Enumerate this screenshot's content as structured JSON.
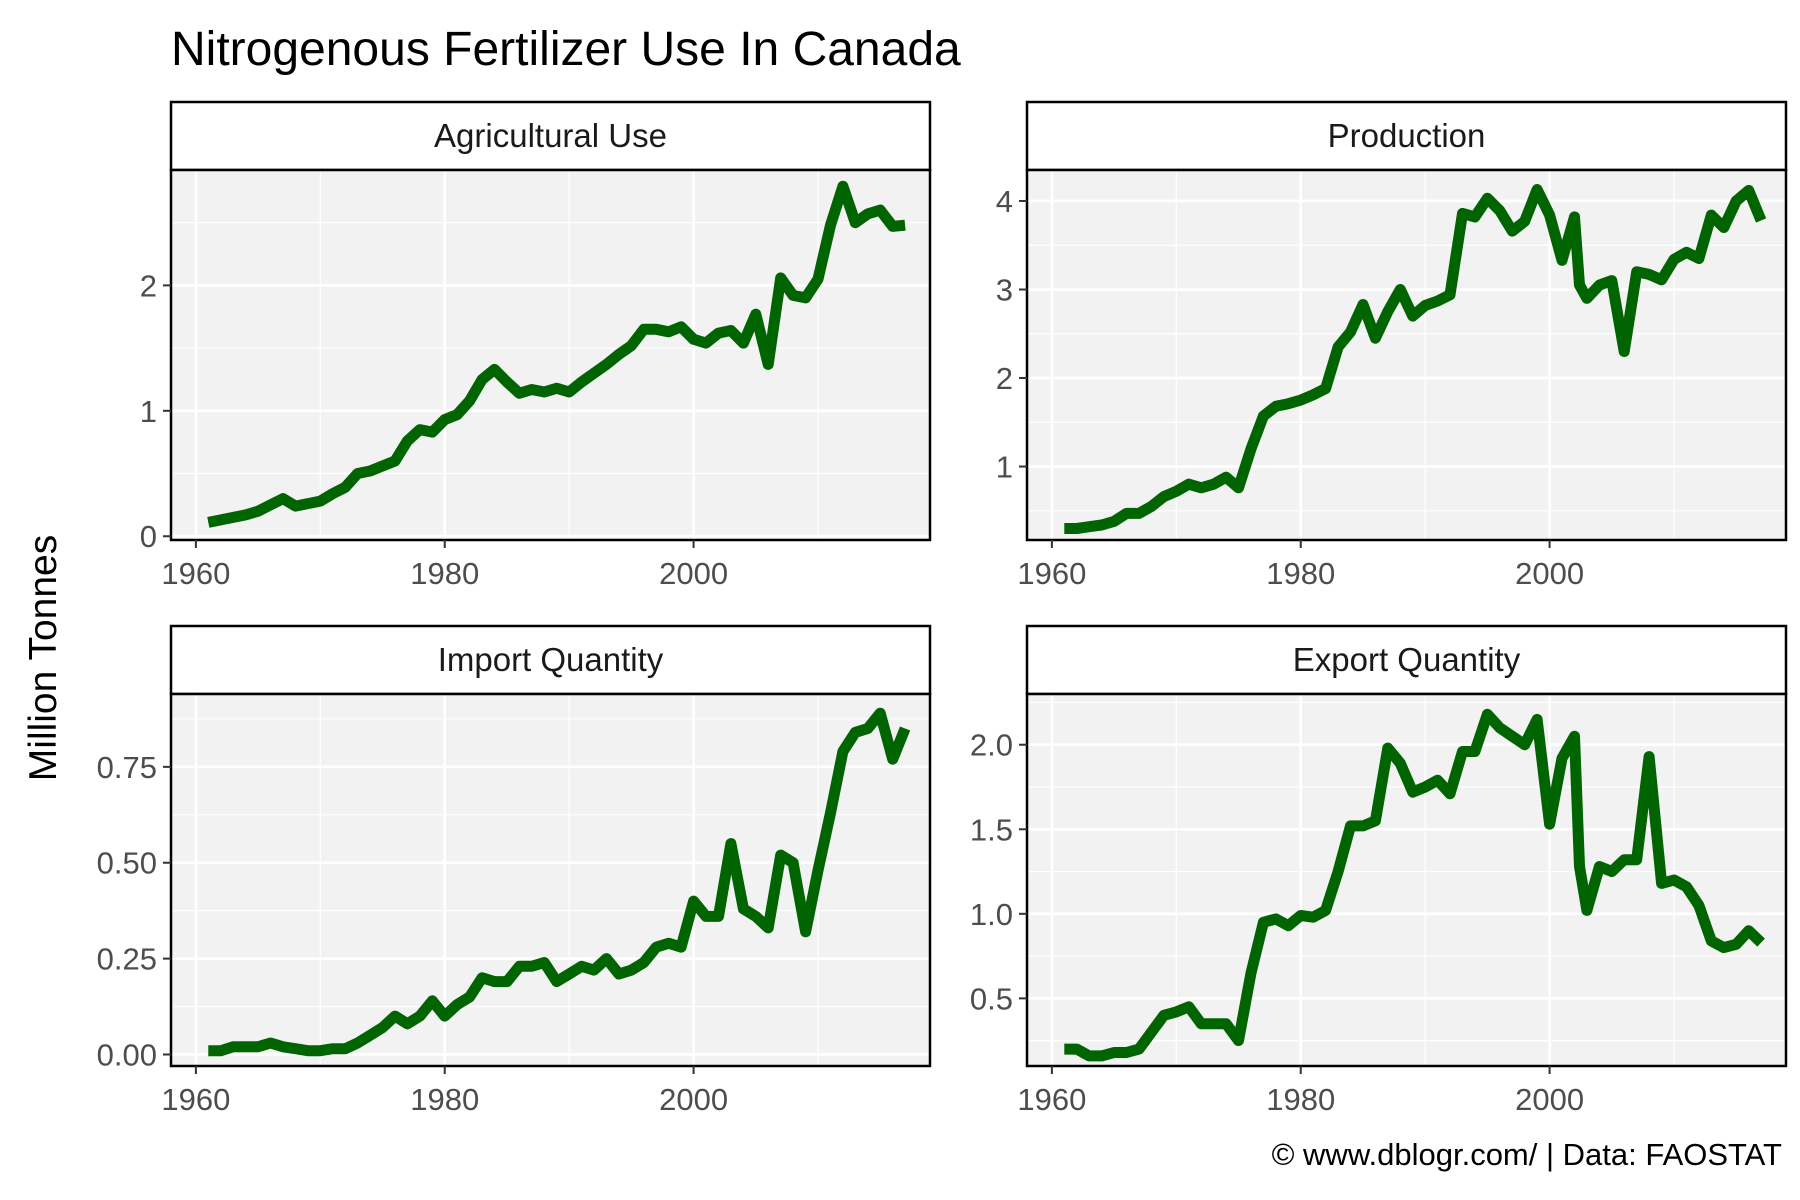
{
  "title": "Nitrogenous Fertilizer Use In Canada",
  "ylabel": "Million Tonnes",
  "caption": "© www.dblogr.com/ | Data: FAOSTAT",
  "colors": {
    "line": "#006400",
    "panel_bg": "#f2f2f2",
    "grid": "#ffffff",
    "border": "#000000",
    "tick_text": "#4d4d4d"
  },
  "chart_data": [
    {
      "type": "line",
      "panel": "Agricultural Use",
      "xlim": [
        1958,
        2019
      ],
      "ylim": [
        -0.03,
        2.92
      ],
      "xticks": [
        1960,
        1980,
        2000
      ],
      "yticks": [
        0,
        1,
        2
      ],
      "ytick_labels": [
        "0",
        "1",
        "2"
      ],
      "x": [
        1961,
        1962,
        1963,
        1964,
        1965,
        1966,
        1967,
        1968,
        1969,
        1970,
        1971,
        1972,
        1973,
        1974,
        1975,
        1976,
        1977,
        1978,
        1979,
        1980,
        1981,
        1982,
        1983,
        1984,
        1985,
        1986,
        1987,
        1988,
        1989,
        1990,
        1991,
        1992,
        1993,
        1994,
        1995,
        1996,
        1997,
        1998,
        1999,
        2000,
        2001,
        2002,
        2003,
        2004,
        2005,
        2006,
        2007,
        2008,
        2009,
        2010,
        2011,
        2012,
        2013,
        2014,
        2015,
        2016,
        2017
      ],
      "y": [
        0.11,
        0.13,
        0.15,
        0.17,
        0.2,
        0.25,
        0.3,
        0.24,
        0.26,
        0.28,
        0.34,
        0.39,
        0.5,
        0.52,
        0.56,
        0.6,
        0.76,
        0.85,
        0.83,
        0.93,
        0.97,
        1.08,
        1.25,
        1.33,
        1.23,
        1.14,
        1.17,
        1.15,
        1.18,
        1.15,
        1.23,
        1.3,
        1.37,
        1.45,
        1.52,
        1.65,
        1.65,
        1.63,
        1.67,
        1.57,
        1.54,
        1.62,
        1.64,
        1.54,
        1.77,
        1.37,
        2.06,
        1.92,
        1.9,
        2.05,
        2.48,
        2.79,
        2.5,
        2.57,
        2.6,
        2.47,
        2.48
      ]
    },
    {
      "type": "line",
      "panel": "Production",
      "xlim": [
        1958,
        2019
      ],
      "ylim": [
        0.17,
        4.35
      ],
      "xticks": [
        1960,
        1980,
        2000
      ],
      "yticks": [
        1,
        2,
        3,
        4
      ],
      "ytick_labels": [
        "1",
        "2",
        "3",
        "4"
      ],
      "x": [
        1961,
        1962,
        1963,
        1964,
        1965,
        1966,
        1967,
        1968,
        1969,
        1970,
        1971,
        1972,
        1973,
        1974,
        1975,
        1976,
        1977,
        1978,
        1979,
        1980,
        1981,
        1982,
        1983,
        1984,
        1985,
        1986,
        1987,
        1988,
        1989,
        1990,
        1991,
        1992,
        1993,
        1994,
        1995,
        1996,
        1997,
        1998,
        1999,
        2000,
        2001,
        2002,
        2002.4,
        2003,
        2004,
        2005,
        2006,
        2007,
        2008,
        2009,
        2010,
        2011,
        2012,
        2013,
        2014,
        2015,
        2016,
        2017
      ],
      "y": [
        0.3,
        0.3,
        0.32,
        0.34,
        0.38,
        0.47,
        0.47,
        0.55,
        0.66,
        0.72,
        0.8,
        0.76,
        0.8,
        0.88,
        0.76,
        1.2,
        1.57,
        1.68,
        1.71,
        1.75,
        1.81,
        1.88,
        2.35,
        2.52,
        2.83,
        2.45,
        2.75,
        3.0,
        2.7,
        2.82,
        2.87,
        2.94,
        3.86,
        3.82,
        4.03,
        3.89,
        3.66,
        3.77,
        4.13,
        3.84,
        3.33,
        3.82,
        3.05,
        2.9,
        3.05,
        3.1,
        2.3,
        3.2,
        3.17,
        3.11,
        3.34,
        3.42,
        3.35,
        3.84,
        3.7,
        4.0,
        4.12,
        3.78
      ]
    },
    {
      "type": "line",
      "panel": "Import Quantity",
      "xlim": [
        1958,
        2019
      ],
      "ylim": [
        -0.03,
        0.94
      ],
      "xticks": [
        1960,
        1980,
        2000
      ],
      "yticks": [
        0,
        0.25,
        0.5,
        0.75
      ],
      "ytick_labels": [
        "0.00",
        "0.25",
        "0.50",
        "0.75"
      ],
      "x": [
        1961,
        1962,
        1963,
        1964,
        1965,
        1966,
        1967,
        1968,
        1969,
        1970,
        1971,
        1972,
        1973,
        1974,
        1975,
        1976,
        1977,
        1978,
        1979,
        1980,
        1981,
        1982,
        1983,
        1984,
        1985,
        1986,
        1987,
        1988,
        1989,
        1990,
        1991,
        1992,
        1993,
        1994,
        1995,
        1996,
        1997,
        1998,
        1999,
        2000,
        2001,
        2002,
        2003,
        2004,
        2005,
        2006,
        2007,
        2008,
        2009,
        2010,
        2011,
        2012,
        2013,
        2014,
        2015,
        2016,
        2017
      ],
      "y": [
        0.01,
        0.01,
        0.02,
        0.02,
        0.02,
        0.03,
        0.02,
        0.015,
        0.01,
        0.01,
        0.015,
        0.015,
        0.03,
        0.05,
        0.07,
        0.1,
        0.08,
        0.1,
        0.14,
        0.1,
        0.13,
        0.15,
        0.2,
        0.19,
        0.19,
        0.23,
        0.23,
        0.24,
        0.19,
        0.21,
        0.23,
        0.22,
        0.25,
        0.21,
        0.22,
        0.24,
        0.28,
        0.29,
        0.28,
        0.4,
        0.36,
        0.36,
        0.55,
        0.38,
        0.36,
        0.33,
        0.52,
        0.5,
        0.32,
        0.48,
        0.63,
        0.79,
        0.84,
        0.85,
        0.89,
        0.77,
        0.85
      ]
    },
    {
      "type": "line",
      "panel": "Export Quantity",
      "xlim": [
        1958,
        2019
      ],
      "ylim": [
        0.1,
        2.3
      ],
      "xticks": [
        1960,
        1980,
        2000
      ],
      "yticks": [
        0.5,
        1.0,
        1.5,
        2.0
      ],
      "ytick_labels": [
        "0.5",
        "1.0",
        "1.5",
        "2.0"
      ],
      "x": [
        1961,
        1962,
        1963,
        1964,
        1965,
        1966,
        1967,
        1968,
        1969,
        1970,
        1971,
        1972,
        1973,
        1974,
        1975,
        1976,
        1977,
        1978,
        1979,
        1980,
        1981,
        1982,
        1983,
        1984,
        1985,
        1986,
        1987,
        1988,
        1989,
        1990,
        1991,
        1992,
        1993,
        1994,
        1995,
        1996,
        1997,
        1998,
        1999,
        2000,
        2001,
        2002,
        2002.4,
        2003,
        2004,
        2005,
        2006,
        2007,
        2008,
        2009,
        2010,
        2011,
        2012,
        2013,
        2014,
        2015,
        2016,
        2017
      ],
      "y": [
        0.2,
        0.2,
        0.16,
        0.16,
        0.18,
        0.18,
        0.2,
        0.3,
        0.4,
        0.42,
        0.45,
        0.35,
        0.35,
        0.35,
        0.25,
        0.65,
        0.95,
        0.97,
        0.93,
        0.99,
        0.98,
        1.02,
        1.25,
        1.52,
        1.52,
        1.55,
        1.98,
        1.89,
        1.72,
        1.75,
        1.79,
        1.71,
        1.96,
        1.96,
        2.18,
        2.1,
        2.05,
        2.0,
        2.15,
        1.53,
        1.92,
        2.05,
        1.28,
        1.02,
        1.28,
        1.25,
        1.32,
        1.32,
        1.93,
        1.18,
        1.2,
        1.16,
        1.05,
        0.84,
        0.8,
        0.82,
        0.9,
        0.83
      ]
    }
  ]
}
